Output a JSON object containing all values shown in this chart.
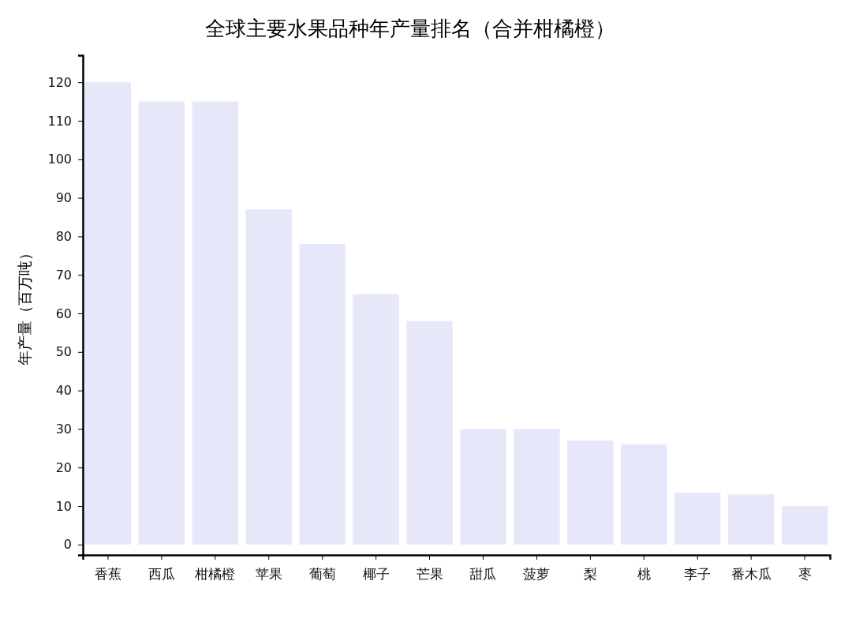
{
  "chart_data": {
    "type": "bar",
    "title": "全球主要水果品种年产量排名（合并柑橘橙）",
    "ylabel": "年产量（百万吨）",
    "categories": [
      "香蕉",
      "西瓜",
      "柑橘橙",
      "苹果",
      "葡萄",
      "椰子",
      "芒果",
      "甜瓜",
      "菠萝",
      "梨",
      "桃",
      "李子",
      "番木瓜",
      "枣"
    ],
    "values": [
      120,
      115,
      115,
      87,
      78,
      65,
      58,
      30,
      30,
      27,
      26,
      13.5,
      13,
      10
    ],
    "color": "#e6e8fa",
    "ylim": [
      -2.7,
      127
    ],
    "yticks": [
      0,
      10,
      20,
      30,
      40,
      50,
      60,
      70,
      80,
      90,
      100,
      110,
      120
    ],
    "grid": false
  }
}
